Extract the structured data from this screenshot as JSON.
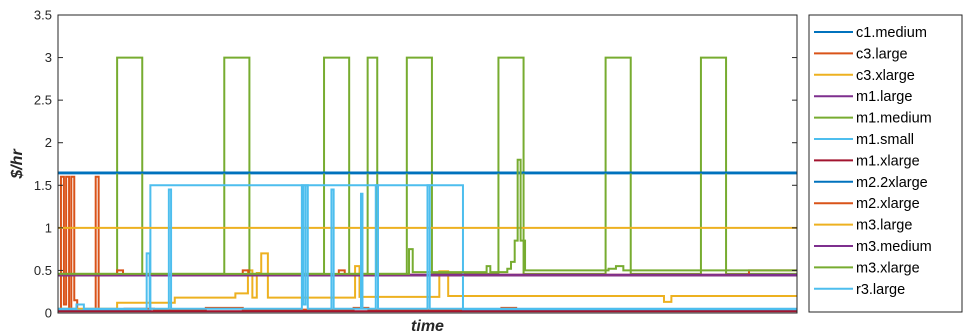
{
  "chart_data": {
    "type": "line",
    "title": "",
    "xlabel": "time",
    "ylabel": "$/hr",
    "ylim": [
      0,
      3.5
    ],
    "xlim": [
      0,
      100
    ],
    "yticks": [
      "0",
      "0.5",
      "1",
      "1.5",
      "2",
      "2.5",
      "3",
      "3.5"
    ],
    "xticks": [],
    "grid": false,
    "legend_position": "outside-right",
    "series": [
      {
        "name": "c1.medium",
        "color": "#0072BD",
        "points": [
          [
            0,
            1.64
          ],
          [
            100,
            1.64
          ]
        ]
      },
      {
        "name": "c3.large",
        "color": "#D95319",
        "points": [
          [
            0,
            0.03
          ],
          [
            0.4,
            0.03
          ],
          [
            0.4,
            1.6
          ],
          [
            0.8,
            1.6
          ],
          [
            0.8,
            0.1
          ],
          [
            1.1,
            0.1
          ],
          [
            1.1,
            1.6
          ],
          [
            1.5,
            1.6
          ],
          [
            1.5,
            0.05
          ],
          [
            1.8,
            0.05
          ],
          [
            1.8,
            1.6
          ],
          [
            2.2,
            1.6
          ],
          [
            2.2,
            0.15
          ],
          [
            2.6,
            0.15
          ],
          [
            2.6,
            0.03
          ],
          [
            5.1,
            0.03
          ],
          [
            5.1,
            1.6
          ],
          [
            5.5,
            1.6
          ],
          [
            5.5,
            0.03
          ],
          [
            9,
            0.03
          ],
          [
            9,
            0.05
          ],
          [
            13,
            0.05
          ],
          [
            13,
            0.04
          ],
          [
            20,
            0.04
          ],
          [
            20,
            0.06
          ],
          [
            25,
            0.06
          ],
          [
            25,
            0.04
          ],
          [
            40,
            0.04
          ],
          [
            40,
            0.06
          ],
          [
            42,
            0.06
          ],
          [
            42,
            0.04
          ],
          [
            60,
            0.04
          ],
          [
            60,
            0.06
          ],
          [
            62,
            0.06
          ],
          [
            62,
            0.04
          ],
          [
            100,
            0.04
          ]
        ]
      },
      {
        "name": "c3.xlarge",
        "color": "#EDB120",
        "points": [
          [
            0,
            0.05
          ],
          [
            8,
            0.05
          ],
          [
            8,
            0.12
          ],
          [
            15.8,
            0.12
          ],
          [
            15.8,
            0.18
          ],
          [
            24,
            0.18
          ],
          [
            24,
            0.23
          ],
          [
            25.7,
            0.23
          ],
          [
            25.7,
            0.5
          ],
          [
            26.3,
            0.5
          ],
          [
            26.3,
            0.18
          ],
          [
            26.9,
            0.18
          ],
          [
            26.9,
            0.47
          ],
          [
            27.5,
            0.47
          ],
          [
            27.5,
            0.7
          ],
          [
            28.4,
            0.7
          ],
          [
            28.4,
            0.18
          ],
          [
            40.2,
            0.18
          ],
          [
            40.2,
            0.55
          ],
          [
            40.8,
            0.55
          ],
          [
            40.8,
            0.19
          ],
          [
            51.6,
            0.19
          ],
          [
            51.6,
            0.49
          ],
          [
            52.8,
            0.49
          ],
          [
            52.8,
            0.2
          ],
          [
            82,
            0.2
          ],
          [
            82,
            0.13
          ],
          [
            83,
            0.13
          ],
          [
            83,
            0.2
          ],
          [
            100,
            0.2
          ]
        ]
      },
      {
        "name": "m1.large",
        "color": "#7E2F8E",
        "points": [
          [
            0,
            0.44
          ],
          [
            100,
            0.44
          ]
        ]
      },
      {
        "name": "m1.medium",
        "color": "#77AC30",
        "points": [
          [
            0,
            0.46
          ],
          [
            8,
            0.46
          ],
          [
            8,
            3.0
          ],
          [
            11.4,
            3.0
          ],
          [
            11.4,
            0.46
          ],
          [
            22.5,
            0.46
          ],
          [
            22.5,
            3.0
          ],
          [
            25.9,
            3.0
          ],
          [
            25.9,
            0.46
          ],
          [
            36,
            0.46
          ],
          [
            36,
            3.0
          ],
          [
            39.4,
            3.0
          ],
          [
            39.4,
            0.46
          ],
          [
            41.9,
            0.46
          ],
          [
            41.9,
            3.0
          ],
          [
            43.2,
            3.0
          ],
          [
            43.2,
            0.46
          ],
          [
            47.2,
            0.46
          ],
          [
            47.2,
            3.0
          ],
          [
            50.6,
            3.0
          ],
          [
            50.6,
            0.46
          ],
          [
            59.6,
            0.46
          ],
          [
            59.6,
            3.0
          ],
          [
            63,
            3.0
          ],
          [
            63,
            0.46
          ],
          [
            74.1,
            0.46
          ],
          [
            74.1,
            3.0
          ],
          [
            77.5,
            3.0
          ],
          [
            77.5,
            0.46
          ],
          [
            87,
            0.46
          ],
          [
            87,
            3.0
          ],
          [
            90.4,
            3.0
          ],
          [
            90.4,
            0.46
          ],
          [
            100,
            0.46
          ]
        ]
      },
      {
        "name": "m1.small",
        "color": "#4DBEEE",
        "points": [
          [
            0,
            0.03
          ],
          [
            12.5,
            0.03
          ],
          [
            12.5,
            1.5
          ],
          [
            54.8,
            1.5
          ],
          [
            54.8,
            0.03
          ],
          [
            100,
            0.03
          ]
        ]
      },
      {
        "name": "m1.xlarge",
        "color": "#A2142F",
        "points": [
          [
            0,
            0.02
          ],
          [
            100,
            0.02
          ]
        ]
      },
      {
        "name": "m2.2xlarge",
        "color": "#0072BD",
        "points": [
          [
            0,
            1.65
          ],
          [
            100,
            1.65
          ]
        ]
      },
      {
        "name": "m2.xlarge",
        "color": "#D95319",
        "points": [
          [
            0,
            0.45
          ],
          [
            8,
            0.45
          ],
          [
            8,
            0.5
          ],
          [
            8.8,
            0.5
          ],
          [
            8.8,
            0.45
          ],
          [
            25,
            0.45
          ],
          [
            25,
            0.5
          ],
          [
            25.8,
            0.5
          ],
          [
            25.8,
            0.45
          ],
          [
            38,
            0.45
          ],
          [
            38,
            0.5
          ],
          [
            38.8,
            0.5
          ],
          [
            38.8,
            0.45
          ],
          [
            93.5,
            0.45
          ],
          [
            93.5,
            0.5
          ],
          [
            100,
            0.5
          ]
        ]
      },
      {
        "name": "m3.large",
        "color": "#EDB120",
        "points": [
          [
            0,
            1.0
          ],
          [
            100,
            1.0
          ]
        ]
      },
      {
        "name": "m3.medium",
        "color": "#7E2F8E",
        "points": [
          [
            0,
            0.45
          ],
          [
            100,
            0.45
          ]
        ]
      },
      {
        "name": "m3.xlarge",
        "color": "#77AC30",
        "points": [
          [
            0,
            0.46
          ],
          [
            47.5,
            0.46
          ],
          [
            47.5,
            0.75
          ],
          [
            48,
            0.75
          ],
          [
            48,
            0.48
          ],
          [
            58,
            0.48
          ],
          [
            58,
            0.55
          ],
          [
            58.5,
            0.55
          ],
          [
            58.5,
            0.48
          ],
          [
            60.8,
            0.48
          ],
          [
            60.8,
            0.52
          ],
          [
            61.3,
            0.52
          ],
          [
            61.3,
            0.6
          ],
          [
            61.8,
            0.6
          ],
          [
            61.8,
            0.85
          ],
          [
            62.2,
            0.85
          ],
          [
            62.2,
            1.8
          ],
          [
            62.6,
            1.8
          ],
          [
            62.6,
            0.85
          ],
          [
            63.2,
            0.85
          ],
          [
            63.2,
            0.5
          ],
          [
            74.5,
            0.5
          ],
          [
            74.5,
            0.52
          ],
          [
            75.5,
            0.52
          ],
          [
            75.5,
            0.55
          ],
          [
            76.5,
            0.55
          ],
          [
            76.5,
            0.5
          ],
          [
            100,
            0.5
          ]
        ]
      },
      {
        "name": "r3.large",
        "color": "#4DBEEE",
        "points": [
          [
            0,
            0.05
          ],
          [
            2.5,
            0.05
          ],
          [
            2.5,
            0.1
          ],
          [
            3.5,
            0.1
          ],
          [
            3.5,
            0.05
          ],
          [
            12,
            0.05
          ],
          [
            12,
            0.7
          ],
          [
            12.4,
            0.7
          ],
          [
            12.4,
            0.05
          ],
          [
            15,
            0.05
          ],
          [
            15,
            1.45
          ],
          [
            15.3,
            1.45
          ],
          [
            15.3,
            0.05
          ],
          [
            33,
            0.05
          ],
          [
            33,
            1.5
          ],
          [
            33.2,
            1.5
          ],
          [
            33.2,
            0.1
          ],
          [
            33.5,
            0.1
          ],
          [
            33.5,
            1.5
          ],
          [
            33.8,
            1.5
          ],
          [
            33.8,
            0.05
          ],
          [
            37,
            0.05
          ],
          [
            37,
            1.45
          ],
          [
            37.3,
            1.45
          ],
          [
            37.3,
            0.05
          ],
          [
            41,
            0.05
          ],
          [
            41,
            1.4
          ],
          [
            41.2,
            1.4
          ],
          [
            41.2,
            0.05
          ],
          [
            43,
            0.05
          ],
          [
            43,
            1.5
          ],
          [
            43.3,
            1.5
          ],
          [
            43.3,
            0.05
          ],
          [
            50,
            0.05
          ],
          [
            50,
            1.5
          ],
          [
            50.3,
            1.5
          ],
          [
            50.3,
            0.05
          ],
          [
            100,
            0.05
          ]
        ]
      }
    ]
  }
}
